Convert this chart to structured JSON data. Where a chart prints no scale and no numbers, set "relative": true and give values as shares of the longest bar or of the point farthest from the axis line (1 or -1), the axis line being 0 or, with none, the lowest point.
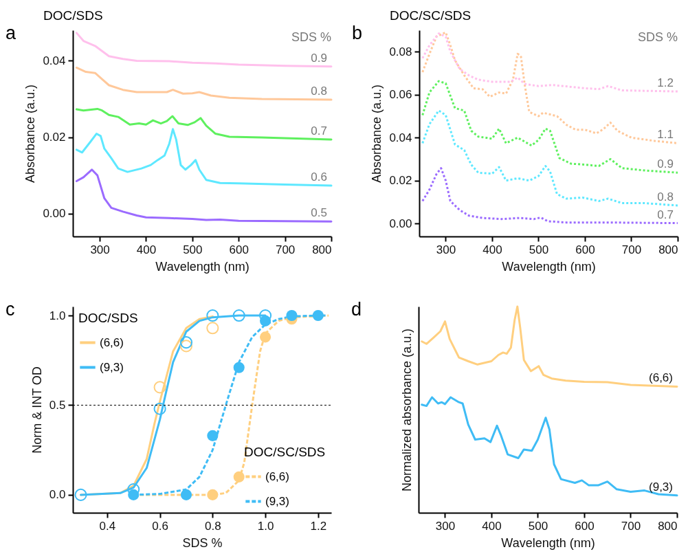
{
  "chart_data": [
    {
      "type": "line",
      "title": "DOC/SDS",
      "xlabel": "Wavelength (nm)",
      "ylabel": "Absorbance (a.u.)",
      "legend_title": "SDS %",
      "annotations": [
        "a"
      ],
      "xlim": [
        242,
        800
      ],
      "ylim": [
        -0.006,
        0.048
      ],
      "xticks": [
        300,
        400,
        500,
        600,
        700,
        800
      ],
      "yticks": [
        {
          "value": 0,
          "label": "0.00"
        },
        {
          "value": 0.02,
          "label": "0.02"
        },
        {
          "value": 0.04,
          "label": "0.04"
        }
      ],
      "series": [
        {
          "name": "0.5",
          "color": "#9b6bff",
          "x": [
            250,
            265,
            283,
            295,
            310,
            325,
            350,
            380,
            400,
            450,
            500,
            530,
            560,
            600,
            700,
            800
          ],
          "values": [
            0.0085,
            0.0095,
            0.0115,
            0.01,
            0.004,
            0.0015,
            0.0005,
            -0.0005,
            -0.001,
            -0.0012,
            -0.0014,
            -0.0017,
            -0.0016,
            -0.0019,
            -0.002,
            -0.0021
          ]
        },
        {
          "name": "0.6",
          "color": "#5ee8ff",
          "x": [
            250,
            262,
            280,
            293,
            302,
            310,
            325,
            340,
            360,
            390,
            410,
            425,
            440,
            450,
            458,
            465,
            475,
            485,
            497,
            507,
            515,
            530,
            560,
            600,
            700,
            800
          ],
          "values": [
            0.0167,
            0.016,
            0.0188,
            0.0209,
            0.0203,
            0.017,
            0.0145,
            0.0118,
            0.0109,
            0.0118,
            0.0127,
            0.014,
            0.0152,
            0.0182,
            0.0221,
            0.0194,
            0.0127,
            0.0115,
            0.0127,
            0.014,
            0.0115,
            0.0088,
            0.008,
            0.0079,
            0.0076,
            0.0073
          ]
        },
        {
          "name": "0.7",
          "color": "#5ef05e",
          "x": [
            250,
            265,
            295,
            305,
            320,
            340,
            365,
            385,
            400,
            415,
            432,
            445,
            457,
            470,
            490,
            505,
            518,
            530,
            550,
            580,
            650,
            800
          ],
          "values": [
            0.0273,
            0.027,
            0.0274,
            0.027,
            0.0258,
            0.0253,
            0.0233,
            0.0236,
            0.0233,
            0.0244,
            0.0236,
            0.0242,
            0.0255,
            0.0236,
            0.0232,
            0.0239,
            0.025,
            0.023,
            0.0209,
            0.0201,
            0.0199,
            0.0194
          ]
        },
        {
          "name": "0.8",
          "color": "#ffc89a",
          "x": [
            250,
            270,
            290,
            305,
            320,
            350,
            380,
            420,
            445,
            458,
            480,
            500,
            515,
            540,
            580,
            650,
            800
          ],
          "values": [
            0.0382,
            0.0371,
            0.0368,
            0.0352,
            0.0336,
            0.0324,
            0.0318,
            0.0318,
            0.0318,
            0.0324,
            0.0314,
            0.0315,
            0.0318,
            0.0309,
            0.0303,
            0.03,
            0.0298
          ]
        },
        {
          "name": "0.9",
          "color": "#ffc0ec",
          "x": [
            250,
            265,
            290,
            320,
            350,
            380,
            450,
            500,
            550,
            600,
            700,
            800
          ],
          "values": [
            0.0473,
            0.0452,
            0.0439,
            0.0412,
            0.0405,
            0.04,
            0.0399,
            0.0395,
            0.0393,
            0.039,
            0.0387,
            0.0385
          ]
        }
      ]
    },
    {
      "type": "line",
      "title": "DOC/SC/SDS",
      "xlabel": "Wavelength (nm)",
      "ylabel": "Absorbance (a.u.)",
      "legend_title": "SDS %",
      "annotations": [
        "b"
      ],
      "line_style": "dotted",
      "xlim": [
        243,
        800
      ],
      "ylim": [
        -0.006,
        0.09
      ],
      "xticks": [
        300,
        400,
        500,
        600,
        700,
        800
      ],
      "yticks": [
        {
          "value": 0,
          "label": "0.00"
        },
        {
          "value": 0.02,
          "label": "0.02"
        },
        {
          "value": 0.04,
          "label": "0.04"
        },
        {
          "value": 0.06,
          "label": "0.06"
        },
        {
          "value": 0.08,
          "label": "0.08"
        }
      ],
      "series": [
        {
          "name": "0.7",
          "color": "#9b6bff",
          "x": [
            250,
            265,
            280,
            290,
            300,
            310,
            330,
            350,
            380,
            420,
            460,
            490,
            505,
            520,
            560,
            650,
            800
          ],
          "values": [
            0.0105,
            0.0158,
            0.023,
            0.0258,
            0.02,
            0.0105,
            0.0063,
            0.0037,
            0.0026,
            0.0021,
            0.0026,
            0.0021,
            0.0028,
            0.0011,
            0.0005,
            0.0005,
            0.0002
          ]
        },
        {
          "name": "0.8",
          "color": "#5ee8ff",
          "x": [
            250,
            265,
            285,
            300,
            320,
            340,
            355,
            370,
            400,
            415,
            430,
            455,
            480,
            500,
            515,
            525,
            540,
            560,
            595,
            630,
            650,
            680,
            730,
            800
          ],
          "values": [
            0.0374,
            0.0463,
            0.0526,
            0.0505,
            0.0368,
            0.0342,
            0.0274,
            0.0237,
            0.0232,
            0.0263,
            0.02,
            0.0211,
            0.02,
            0.0221,
            0.0268,
            0.0242,
            0.0137,
            0.0116,
            0.0121,
            0.0105,
            0.0116,
            0.0095,
            0.0095,
            0.0084
          ]
        },
        {
          "name": "0.9",
          "color": "#5ef05e",
          "x": [
            250,
            265,
            285,
            300,
            320,
            340,
            355,
            370,
            400,
            415,
            430,
            455,
            485,
            500,
            515,
            525,
            545,
            570,
            600,
            630,
            655,
            680,
            730,
            800
          ],
          "values": [
            0.0505,
            0.0611,
            0.0663,
            0.0653,
            0.0537,
            0.0526,
            0.0432,
            0.0405,
            0.0395,
            0.0442,
            0.0374,
            0.04,
            0.0363,
            0.0389,
            0.0442,
            0.0432,
            0.0305,
            0.0279,
            0.0274,
            0.0268,
            0.03,
            0.0258,
            0.0247,
            0.0237
          ]
        },
        {
          "name": "1.1",
          "color": "#ffc89a",
          "x": [
            250,
            265,
            280,
            300,
            310,
            320,
            340,
            360,
            380,
            395,
            415,
            430,
            445,
            455,
            462,
            470,
            480,
            500,
            510,
            540,
            560,
            580,
            600,
            625,
            640,
            655,
            670,
            700,
            750,
            800
          ],
          "values": [
            0.0705,
            0.079,
            0.087,
            0.089,
            0.083,
            0.076,
            0.069,
            0.063,
            0.0625,
            0.059,
            0.061,
            0.0605,
            0.067,
            0.079,
            0.078,
            0.065,
            0.052,
            0.05,
            0.0516,
            0.05,
            0.046,
            0.0437,
            0.0437,
            0.042,
            0.044,
            0.047,
            0.0432,
            0.04,
            0.0385,
            0.0374
          ]
        },
        {
          "name": "1.2",
          "color": "#ffc0ec",
          "x": [
            250,
            265,
            285,
            300,
            310,
            330,
            350,
            370,
            400,
            440,
            455,
            470,
            500,
            530,
            600,
            630,
            650,
            680,
            800
          ],
          "values": [
            0.077,
            0.083,
            0.0885,
            0.087,
            0.08,
            0.072,
            0.069,
            0.067,
            0.066,
            0.066,
            0.068,
            0.065,
            0.064,
            0.0645,
            0.063,
            0.0626,
            0.064,
            0.062,
            0.0615
          ]
        }
      ]
    },
    {
      "type": "line",
      "xlabel": "SDS %",
      "ylabel": "Norm & INT OD",
      "legend_title": "DOC/SDS",
      "legend": "left",
      "annotations": [
        "c",
        "DOC/SC/SDS"
      ],
      "xlim": [
        0.27,
        1.25
      ],
      "ylim": [
        -0.1,
        1.05
      ],
      "xticks": [
        0.4,
        0.6,
        0.8,
        {
          "value": 1,
          "label": "1.0"
        },
        1.2
      ],
      "yticks": [
        {
          "value": 0,
          "label": "0.0"
        },
        0.5,
        {
          "value": 1,
          "label": "1.0"
        }
      ],
      "ref_lines": [
        {
          "axis": "y",
          "value": 0.5,
          "line_style": "dotted",
          "color": "#000000"
        }
      ],
      "series": [
        {
          "name": "(6,6)",
          "color": "#ffcf7f",
          "line_style": "solid",
          "x": [
            0.3,
            0.45,
            0.5,
            0.55,
            0.58,
            0.6,
            0.65,
            0.7,
            0.75,
            0.8
          ],
          "values": [
            0,
            0.01,
            0.05,
            0.2,
            0.4,
            0.52,
            0.8,
            0.93,
            0.98,
            0.995
          ]
        },
        {
          "name": "(9,3)",
          "color": "#3fbcf5",
          "line_style": "solid",
          "x": [
            0.3,
            0.45,
            0.5,
            0.55,
            0.6,
            0.62,
            0.65,
            0.7,
            0.75,
            0.8,
            0.9,
            1.0
          ],
          "values": [
            0,
            0.01,
            0.04,
            0.15,
            0.42,
            0.55,
            0.74,
            0.91,
            0.97,
            0.99,
            1,
            1
          ]
        },
        {
          "type": "scatter",
          "color": "#ffcf7f",
          "marker": "circle",
          "x": [
            0.6,
            0.7,
            0.8
          ],
          "values": [
            0.6,
            0.83,
            0.93
          ]
        },
        {
          "type": "scatter",
          "color": "#3fbcf5",
          "marker": "circle",
          "x": [
            0.3,
            0.5,
            0.6,
            0.7,
            0.8,
            0.9,
            1.0
          ],
          "values": [
            0,
            0.03,
            0.48,
            0.85,
            1,
            1,
            1
          ]
        },
        {
          "name": "(6,6)",
          "color": "#ffcf7f",
          "line_style": "dashed",
          "x": [
            0.5,
            0.8,
            0.85,
            0.9,
            0.92,
            0.95,
            0.98,
            1.0,
            1.05,
            1.1,
            1.24
          ],
          "values": [
            0,
            0,
            0.01,
            0.08,
            0.18,
            0.5,
            0.8,
            0.9,
            0.97,
            0.99,
            1
          ]
        },
        {
          "name": "(9,3)",
          "color": "#3fbcf5",
          "line_style": "dashed",
          "x": [
            0.5,
            0.6,
            0.7,
            0.75,
            0.8,
            0.85,
            0.9,
            0.95,
            1.0,
            1.05,
            1.1,
            1.2,
            1.23
          ],
          "values": [
            0,
            0.005,
            0.03,
            0.1,
            0.25,
            0.5,
            0.74,
            0.88,
            0.95,
            0.98,
            0.995,
            1,
            1
          ]
        },
        {
          "type": "scatter",
          "color": "#ffcf7f",
          "marker": "circle",
          "x": [
            0.8,
            0.9,
            1.0,
            1.1
          ],
          "values": [
            0,
            0.1,
            0.88,
            0.98
          ]
        },
        {
          "type": "scatter",
          "color": "#3fbcf5",
          "marker": "circle",
          "x": [
            0.5,
            0.7,
            0.8,
            0.9,
            1.0,
            1.1,
            1.2
          ],
          "values": [
            0,
            0,
            0.33,
            0.71,
            0.97,
            1,
            1
          ]
        }
      ]
    },
    {
      "type": "line",
      "xlabel": "Wavelength (nm)",
      "ylabel": "Normalized absorbance (a.u.)",
      "annotations": [
        "d"
      ],
      "relative": true,
      "xlim": [
        243,
        800
      ],
      "xticks": [
        300,
        400,
        500,
        600,
        700,
        800
      ],
      "series": [
        {
          "name": "(6,6)",
          "color": "#ffcf7f",
          "x": [
            250,
            260,
            275,
            290,
            300,
            310,
            330,
            350,
            370,
            400,
            415,
            425,
            433,
            442,
            450,
            456,
            462,
            470,
            485,
            502,
            512,
            530,
            560,
            600,
            650,
            700,
            800
          ],
          "values": [
            0.831,
            0.819,
            0.849,
            0.88,
            0.928,
            0.843,
            0.753,
            0.735,
            0.719,
            0.735,
            0.765,
            0.777,
            0.771,
            0.801,
            0.934,
            1.0,
            0.898,
            0.741,
            0.687,
            0.711,
            0.669,
            0.651,
            0.641,
            0.635,
            0.633,
            0.62,
            0.612
          ]
        },
        {
          "name": "(9,3)",
          "color": "#3fbcf5",
          "x": [
            250,
            260,
            272,
            285,
            293,
            300,
            312,
            330,
            338,
            350,
            365,
            385,
            398,
            412,
            420,
            435,
            458,
            470,
            487,
            500,
            517,
            525,
            535,
            550,
            580,
            595,
            610,
            630,
            650,
            670,
            700,
            730,
            760,
            800
          ],
          "values": [
            0.524,
            0.518,
            0.56,
            0.53,
            0.536,
            0.527,
            0.56,
            0.536,
            0.53,
            0.428,
            0.355,
            0.361,
            0.343,
            0.422,
            0.379,
            0.283,
            0.265,
            0.307,
            0.301,
            0.355,
            0.461,
            0.404,
            0.235,
            0.163,
            0.145,
            0.157,
            0.133,
            0.133,
            0.151,
            0.114,
            0.102,
            0.108,
            0.09,
            0.084
          ]
        }
      ]
    }
  ]
}
